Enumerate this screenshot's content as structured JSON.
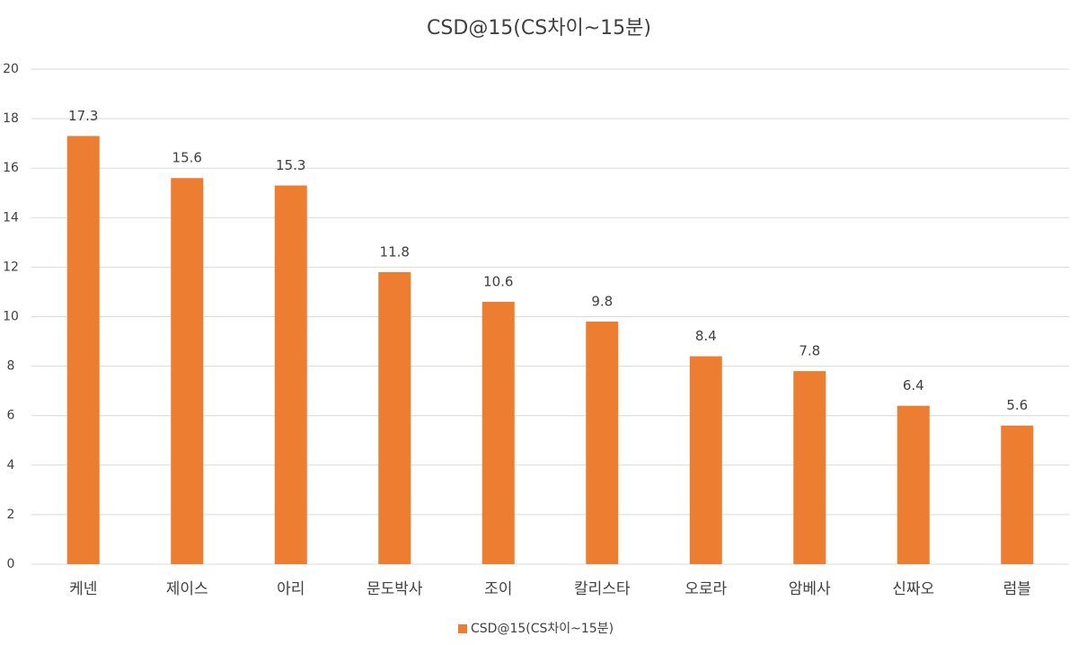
{
  "chart_data": {
    "type": "bar",
    "title": "CSD@15(CS차이~15분)",
    "categories": [
      "케넨",
      "제이스",
      "아리",
      "문도박사",
      "조이",
      "칼리스타",
      "오로라",
      "암베사",
      "신짜오",
      "럼블"
    ],
    "series": [
      {
        "name": "CSD@15(CS차이~15분)",
        "color": "#ed7d31",
        "values": [
          17.3,
          15.6,
          15.3,
          11.8,
          10.6,
          9.8,
          8.4,
          7.8,
          6.4,
          5.6
        ]
      }
    ],
    "ylim": [
      0,
      20
    ],
    "yticks": [
      0,
      2,
      4,
      6,
      8,
      10,
      12,
      14,
      16,
      18,
      20
    ],
    "grid": true,
    "legend": "bottom"
  }
}
